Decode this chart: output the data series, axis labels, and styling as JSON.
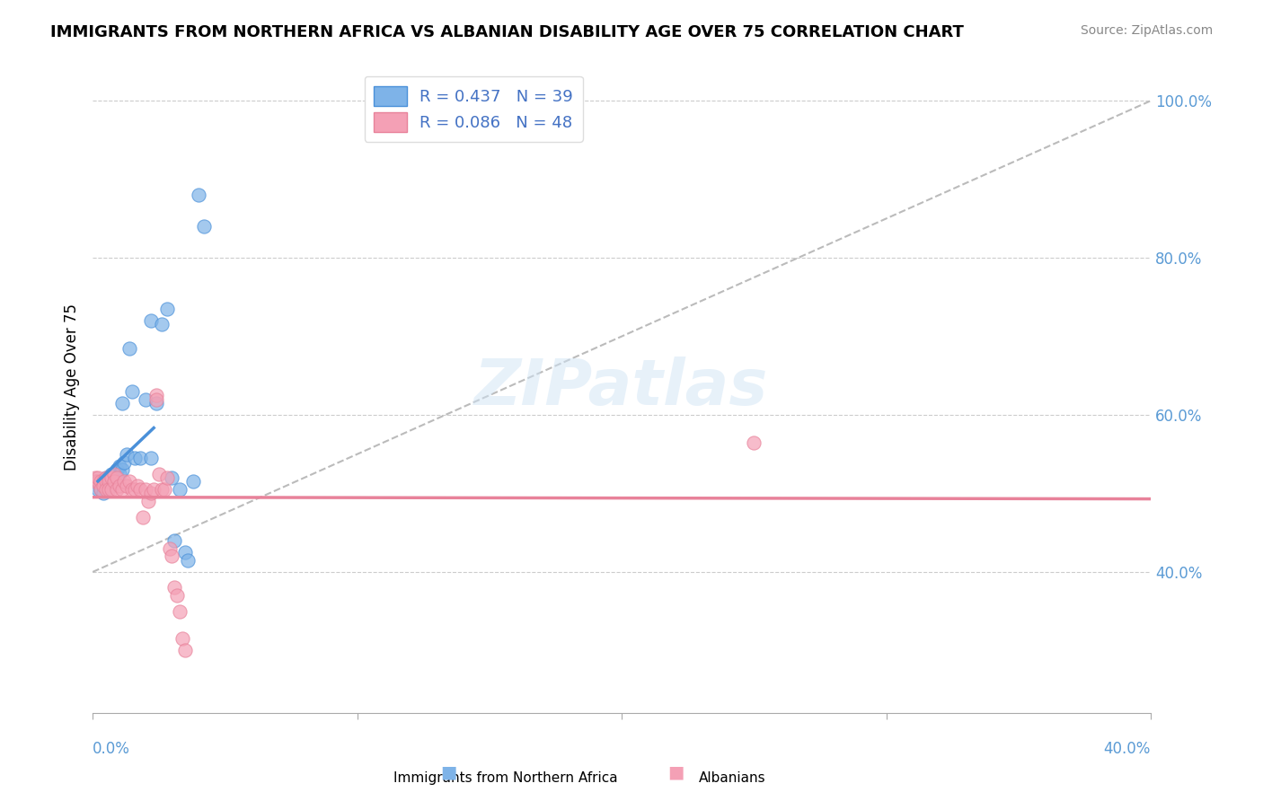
{
  "title": "IMMIGRANTS FROM NORTHERN AFRICA VS ALBANIAN DISABILITY AGE OVER 75 CORRELATION CHART",
  "source": "Source: ZipAtlas.com",
  "ylabel": "Disability Age Over 75",
  "legend1_label": "R = 0.437   N = 39",
  "legend2_label": "R = 0.086   N = 48",
  "series1_color": "#7EB3E8",
  "series2_color": "#F4A0B5",
  "trendline1_color": "#4A90D9",
  "trendline2_color": "#E8829A",
  "diagonal_color": "#BBBBBB",
  "background_color": "#FFFFFF",
  "blue_x": [
    0.002,
    0.003,
    0.003,
    0.004,
    0.004,
    0.005,
    0.005,
    0.006,
    0.006,
    0.007,
    0.007,
    0.008,
    0.008,
    0.009,
    0.009,
    0.01,
    0.01,
    0.011,
    0.011,
    0.012,
    0.013,
    0.014,
    0.015,
    0.016,
    0.018,
    0.02,
    0.022,
    0.022,
    0.024,
    0.026,
    0.028,
    0.03,
    0.031,
    0.033,
    0.035,
    0.036,
    0.038,
    0.04,
    0.042
  ],
  "blue_y": [
    0.505,
    0.515,
    0.505,
    0.515,
    0.5,
    0.52,
    0.515,
    0.52,
    0.515,
    0.525,
    0.51,
    0.525,
    0.515,
    0.53,
    0.52,
    0.535,
    0.525,
    0.53,
    0.615,
    0.54,
    0.55,
    0.685,
    0.63,
    0.545,
    0.545,
    0.62,
    0.72,
    0.545,
    0.615,
    0.715,
    0.735,
    0.52,
    0.44,
    0.505,
    0.425,
    0.415,
    0.515,
    0.88,
    0.84
  ],
  "pink_x": [
    0.001,
    0.001,
    0.002,
    0.002,
    0.003,
    0.003,
    0.004,
    0.004,
    0.005,
    0.005,
    0.005,
    0.006,
    0.006,
    0.006,
    0.007,
    0.007,
    0.008,
    0.008,
    0.009,
    0.009,
    0.01,
    0.011,
    0.012,
    0.013,
    0.014,
    0.015,
    0.016,
    0.017,
    0.018,
    0.019,
    0.02,
    0.021,
    0.022,
    0.023,
    0.024,
    0.025,
    0.026,
    0.027,
    0.028,
    0.029,
    0.03,
    0.031,
    0.032,
    0.033,
    0.034,
    0.035,
    0.25,
    0.024
  ],
  "pink_y": [
    0.52,
    0.515,
    0.515,
    0.52,
    0.515,
    0.505,
    0.515,
    0.51,
    0.52,
    0.515,
    0.505,
    0.52,
    0.515,
    0.505,
    0.52,
    0.505,
    0.525,
    0.515,
    0.52,
    0.505,
    0.51,
    0.505,
    0.515,
    0.51,
    0.515,
    0.505,
    0.505,
    0.51,
    0.505,
    0.47,
    0.505,
    0.49,
    0.5,
    0.505,
    0.625,
    0.525,
    0.505,
    0.505,
    0.52,
    0.43,
    0.42,
    0.38,
    0.37,
    0.35,
    0.315,
    0.3,
    0.565,
    0.62
  ],
  "xlim": [
    0.0,
    0.4
  ],
  "ylim": [
    0.22,
    1.05
  ],
  "ytick_vals": [
    0.4,
    0.6,
    0.8,
    1.0
  ],
  "ytick_labels": [
    "40.0%",
    "60.0%",
    "80.0%",
    "100.0%"
  ],
  "watermark": "ZIPatlas",
  "bottom_label1": "Immigrants from Northern Africa",
  "bottom_label2": "Albanians",
  "tick_label_color": "#5B9BD5",
  "legend_text_color": "#4472C4"
}
